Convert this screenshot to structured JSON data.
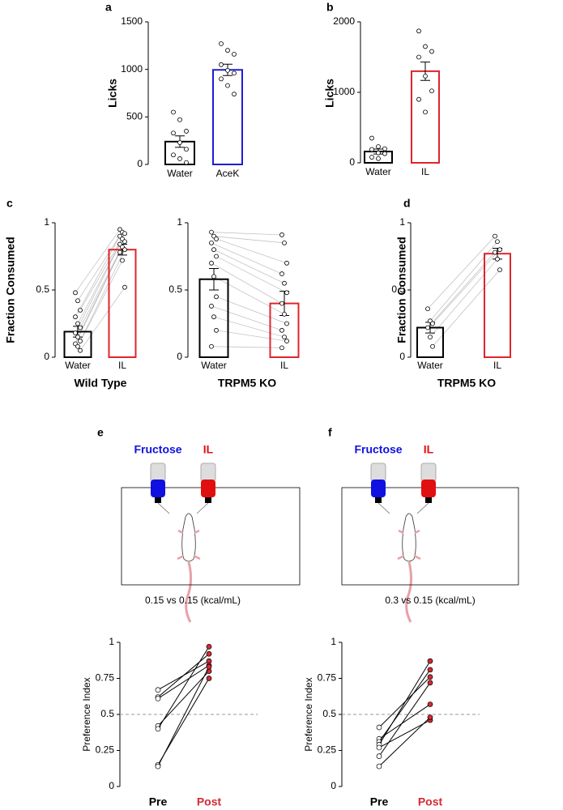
{
  "chart_data": [
    {
      "type": "bar",
      "panel": "a",
      "ylabel": "Licks",
      "categories": [
        "Water",
        "AceK"
      ],
      "values": [
        240,
        995
      ],
      "errors": [
        60,
        60
      ],
      "colors": [
        "#000000",
        "#1c1cd4"
      ],
      "points": [
        [
          550,
          470,
          350,
          330,
          230,
          160,
          100,
          60,
          20
        ],
        [
          1270,
          1200,
          1160,
          1050,
          990,
          960,
          900,
          830,
          740
        ]
      ],
      "ylim": [
        0,
        1500
      ],
      "yticks": [
        0,
        500,
        1000,
        1500
      ]
    },
    {
      "type": "bar",
      "panel": "b",
      "ylabel": "Licks",
      "categories": [
        "Water",
        "IL"
      ],
      "values": [
        160,
        1300
      ],
      "errors": [
        35,
        130
      ],
      "colors": [
        "#000000",
        "#e0242c"
      ],
      "points": [
        [
          350,
          230,
          200,
          190,
          140,
          130,
          80,
          60
        ],
        [
          1870,
          1650,
          1580,
          1500,
          1230,
          1020,
          900,
          720
        ]
      ],
      "ylim": [
        0,
        2000
      ],
      "yticks": [
        0,
        1000,
        2000
      ]
    },
    {
      "type": "bar",
      "panel": "c",
      "paired": true,
      "ylabel": "Fraction Consumed",
      "xlabel": "Wild Type",
      "categories": [
        "Water",
        "IL"
      ],
      "values": [
        0.19,
        0.8
      ],
      "errors": [
        0.04,
        0.04
      ],
      "colors": [
        "#000000",
        "#e0242c"
      ],
      "points": [
        [
          0.48,
          0.42,
          0.35,
          0.3,
          0.25,
          0.22,
          0.18,
          0.15,
          0.12,
          0.1,
          0.08,
          0.05
        ],
        [
          0.95,
          0.93,
          0.92,
          0.9,
          0.88,
          0.86,
          0.84,
          0.82,
          0.8,
          0.78,
          0.72,
          0.52
        ]
      ],
      "ylim": [
        0,
        1
      ],
      "yticks": [
        0,
        0.5,
        1
      ]
    },
    {
      "type": "bar",
      "paired": true,
      "xlabel": "TRPM5 KO",
      "categories": [
        "Water",
        "IL"
      ],
      "values": [
        0.58,
        0.4
      ],
      "errors": [
        0.08,
        0.09
      ],
      "colors": [
        "#000000",
        "#e0242c"
      ],
      "points": [
        [
          0.93,
          0.9,
          0.88,
          0.85,
          0.8,
          0.75,
          0.7,
          0.6,
          0.45,
          0.38,
          0.3,
          0.2,
          0.08
        ],
        [
          0.91,
          0.85,
          0.7,
          0.62,
          0.55,
          0.48,
          0.4,
          0.32,
          0.25,
          0.2,
          0.15,
          0.12,
          0.07
        ]
      ],
      "ylim": [
        0,
        1
      ],
      "yticks": [
        0,
        0.5,
        1
      ]
    },
    {
      "type": "bar",
      "panel": "d",
      "paired": true,
      "ylabel": "Fraction Consumed",
      "xlabel": "TRPM5 KO",
      "categories": [
        "Water",
        "IL"
      ],
      "values": [
        0.22,
        0.77
      ],
      "errors": [
        0.04,
        0.04
      ],
      "colors": [
        "#000000",
        "#e0242c"
      ],
      "points": [
        [
          0.36,
          0.27,
          0.25,
          0.22,
          0.15,
          0.08
        ],
        [
          0.9,
          0.86,
          0.8,
          0.78,
          0.73,
          0.65
        ]
      ],
      "ylim": [
        0,
        1
      ],
      "yticks": [
        0,
        0.5,
        1
      ]
    },
    {
      "type": "line",
      "panel": "e",
      "bottles": [
        {
          "label": "Fructose",
          "color": "#1010e0"
        },
        {
          "label": "IL",
          "color": "#e01010"
        }
      ],
      "caption": "0.15 vs 0.15 (kcal/mL)",
      "ylabel": "Preference Index",
      "categories": [
        "Pre",
        "Post"
      ],
      "category_colors": [
        "#000000",
        "#d42a35"
      ],
      "series": [
        {
          "values": [
            0.67,
            0.87
          ]
        },
        {
          "values": [
            0.62,
            0.92
          ]
        },
        {
          "values": [
            0.61,
            0.84
          ]
        },
        {
          "values": [
            0.42,
            0.8
          ]
        },
        {
          "values": [
            0.4,
            0.97
          ]
        },
        {
          "values": [
            0.15,
            0.75
          ]
        },
        {
          "values": [
            0.14,
            0.83
          ]
        }
      ],
      "reference_line": 0.5,
      "ylim": [
        0,
        1
      ],
      "yticks": [
        0,
        0.25,
        0.5,
        0.75,
        1
      ]
    },
    {
      "type": "line",
      "panel": "f",
      "bottles": [
        {
          "label": "Fructose",
          "color": "#1010e0"
        },
        {
          "label": "IL",
          "color": "#e01010"
        }
      ],
      "caption": "0.3 vs 0.15 (kcal/mL)",
      "ylabel": "Preference Index",
      "categories": [
        "Pre",
        "Post"
      ],
      "category_colors": [
        "#000000",
        "#d42a35"
      ],
      "series": [
        {
          "values": [
            0.41,
            0.76
          ]
        },
        {
          "values": [
            0.33,
            0.57
          ]
        },
        {
          "values": [
            0.31,
            0.81
          ]
        },
        {
          "values": [
            0.29,
            0.87
          ]
        },
        {
          "values": [
            0.27,
            0.46
          ]
        },
        {
          "values": [
            0.21,
            0.72
          ]
        },
        {
          "values": [
            0.14,
            0.48
          ]
        }
      ],
      "reference_line": 0.5,
      "ylim": [
        0,
        1
      ],
      "yticks": [
        0,
        0.25,
        0.5,
        0.75,
        1
      ]
    }
  ]
}
